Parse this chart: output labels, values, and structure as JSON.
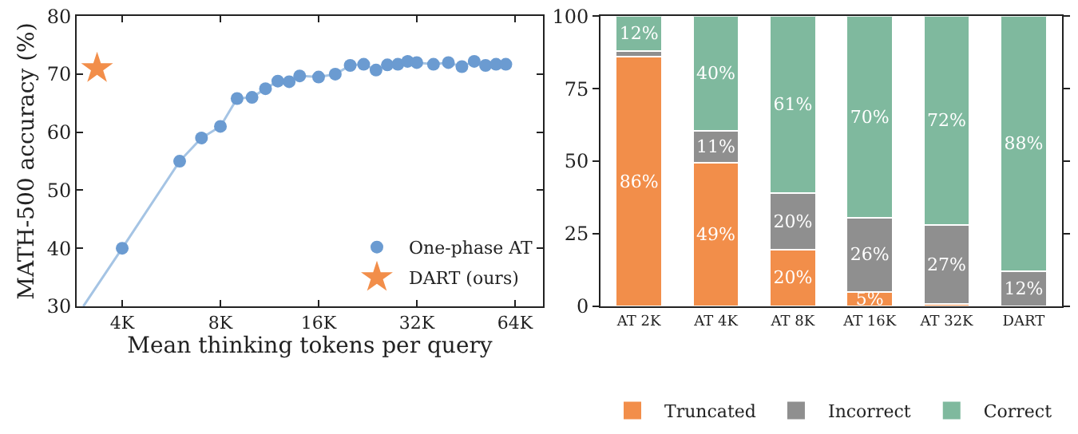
{
  "chart_data": [
    {
      "type": "scatter",
      "xlabel": "Mean thinking tokens per query",
      "ylabel": "MATH-500 accuracy (%)",
      "log": "x",
      "xlim": [
        2900,
        78000
      ],
      "xticks": [
        {
          "value": 4000,
          "label": "4K"
        },
        {
          "value": 8000,
          "label": "8K"
        },
        {
          "value": 16000,
          "label": "16K"
        },
        {
          "value": 32000,
          "label": "32K"
        },
        {
          "value": 64000,
          "label": "64K"
        }
      ],
      "ylim": [
        30,
        80
      ],
      "yticks": [
        30,
        40,
        50,
        60,
        70,
        80
      ],
      "legend": "bottom right",
      "series": [
        {
          "type": "line",
          "color": "#a5c4e4",
          "marker": "none",
          "x": [
            3040,
            4000,
            6000,
            7000,
            8000,
            9000,
            10000,
            11000,
            12000,
            13000,
            14000,
            16000,
            18000,
            20000,
            22000,
            24000,
            26000,
            28000,
            30000,
            32000,
            36000,
            40000,
            44000,
            48000,
            52000,
            56000,
            60000
          ],
          "values": [
            30,
            40,
            55,
            59,
            61,
            65.8,
            66,
            67.5,
            68.8,
            68.7,
            69.7,
            69.5,
            70,
            71.5,
            71.7,
            70.7,
            71.6,
            71.7,
            72.2,
            72,
            71.7,
            72,
            71.3,
            72.2,
            71.5,
            71.7,
            71.7
          ]
        },
        {
          "name": "One-phase AT",
          "color": "#6b9bd1",
          "marker": "circle",
          "x": [
            4000,
            6000,
            7000,
            8000,
            9000,
            10000,
            11000,
            12000,
            13000,
            14000,
            16000,
            18000,
            20000,
            22000,
            24000,
            26000,
            28000,
            30000,
            32000,
            36000,
            40000,
            44000,
            48000,
            52000,
            56000,
            60000
          ],
          "values": [
            40,
            55,
            59,
            61,
            65.8,
            66,
            67.5,
            68.8,
            68.7,
            69.7,
            69.5,
            70,
            71.5,
            71.7,
            70.7,
            71.6,
            71.7,
            72.2,
            72,
            71.7,
            72,
            71.3,
            72.2,
            71.5,
            71.7,
            71.7
          ]
        },
        {
          "name": "DART (ours)",
          "color": "#f28e4a",
          "marker": "star",
          "x": [
            3350
          ],
          "values": [
            71
          ]
        }
      ]
    },
    {
      "type": "bar",
      "stacked": true,
      "categories": [
        "AT 2K",
        "AT 4K",
        "AT 8K",
        "AT 16K",
        "AT 32K",
        "DART"
      ],
      "ylim": [
        0,
        100
      ],
      "yticks": [
        0,
        25,
        50,
        75,
        100
      ],
      "legend": "bottom",
      "series": [
        {
          "name": "Truncated",
          "color": "#f28e4a",
          "values": [
            86,
            49.4,
            19.5,
            5,
            0.8,
            0
          ],
          "value_labels": [
            "86%",
            "49%",
            "20%",
            "5%",
            null,
            null
          ]
        },
        {
          "name": "Incorrect",
          "color": "#8f8f8f",
          "values": [
            2,
            11.1,
            19.5,
            25.5,
            27.2,
            12
          ],
          "value_labels": [
            null,
            "11%",
            "20%",
            "26%",
            "27%",
            "12%"
          ]
        },
        {
          "name": "Correct",
          "color": "#7fb99e",
          "values": [
            12,
            39.5,
            61,
            69.5,
            72,
            88
          ],
          "value_labels": [
            "12%",
            "40%",
            "61%",
            "70%",
            "72%",
            "88%"
          ]
        }
      ]
    }
  ]
}
